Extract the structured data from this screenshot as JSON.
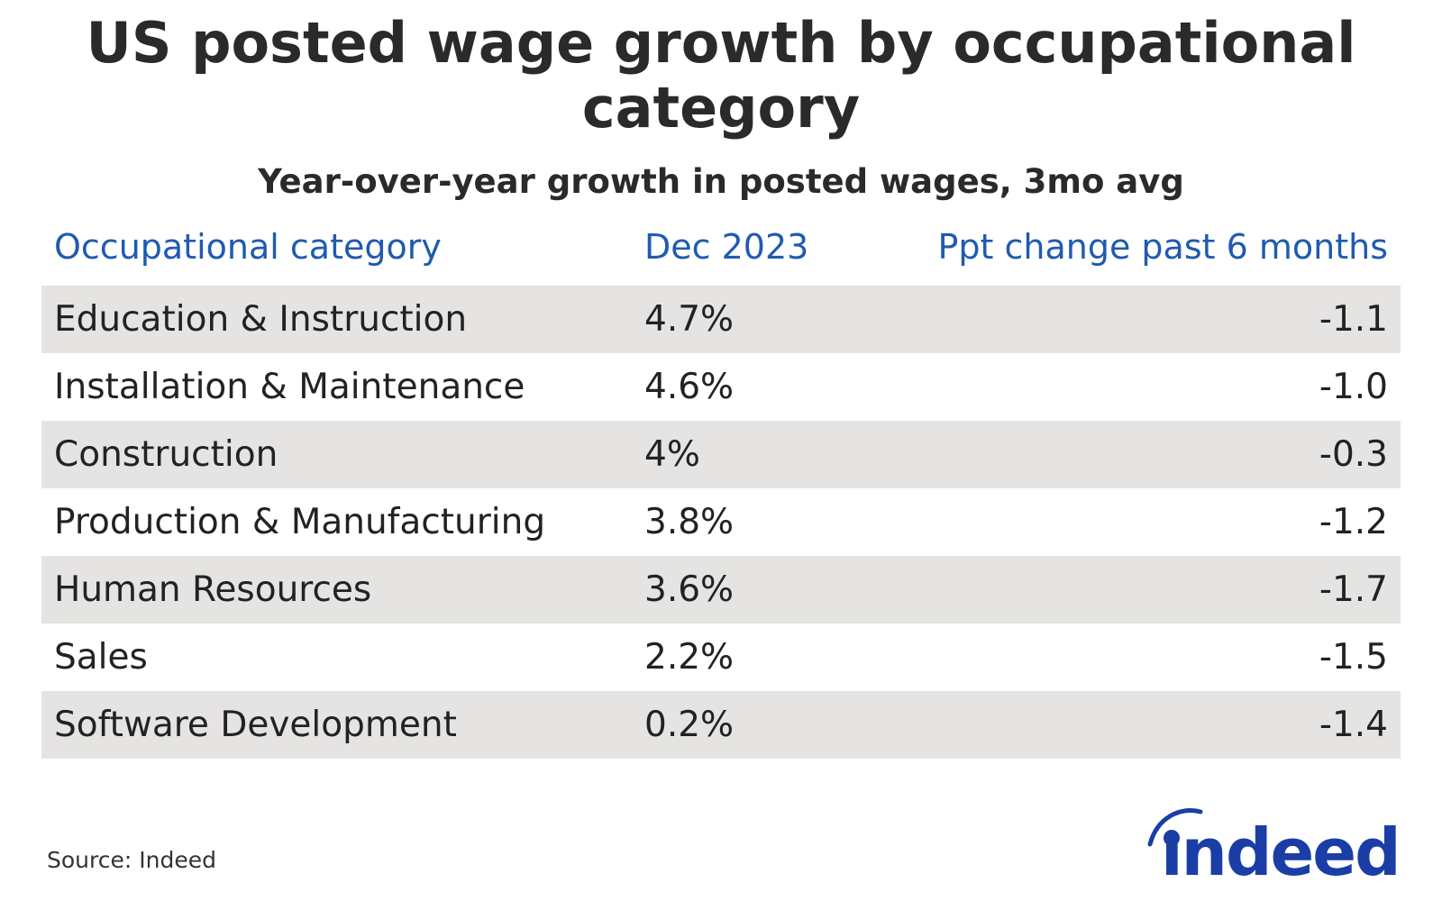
{
  "chart_data": {
    "type": "table",
    "title": "US posted wage growth by occupational category",
    "subtitle": "Year-over-year growth in posted wages, 3mo avg",
    "columns": [
      "Occupational category",
      "Dec 2023",
      "Ppt change past 6 months"
    ],
    "rows": [
      [
        "Education & Instruction",
        "4.7%",
        "-1.1"
      ],
      [
        "Installation & Maintenance",
        "4.6%",
        "-1.0"
      ],
      [
        "Construction",
        "4%",
        "-0.3"
      ],
      [
        "Production & Manufacturing",
        "3.8%",
        "-1.2"
      ],
      [
        "Human Resources",
        "3.6%",
        "-1.7"
      ],
      [
        "Sales",
        "2.2%",
        "-1.5"
      ],
      [
        "Software Development",
        "0.2%",
        "-1.4"
      ]
    ],
    "source": "Source: Indeed"
  },
  "logo": {
    "text": "indeed",
    "color": "#1a3ea6"
  },
  "colors": {
    "header": "#1f5bb0",
    "stripe": "#e5e4e3",
    "text": "#222222"
  }
}
